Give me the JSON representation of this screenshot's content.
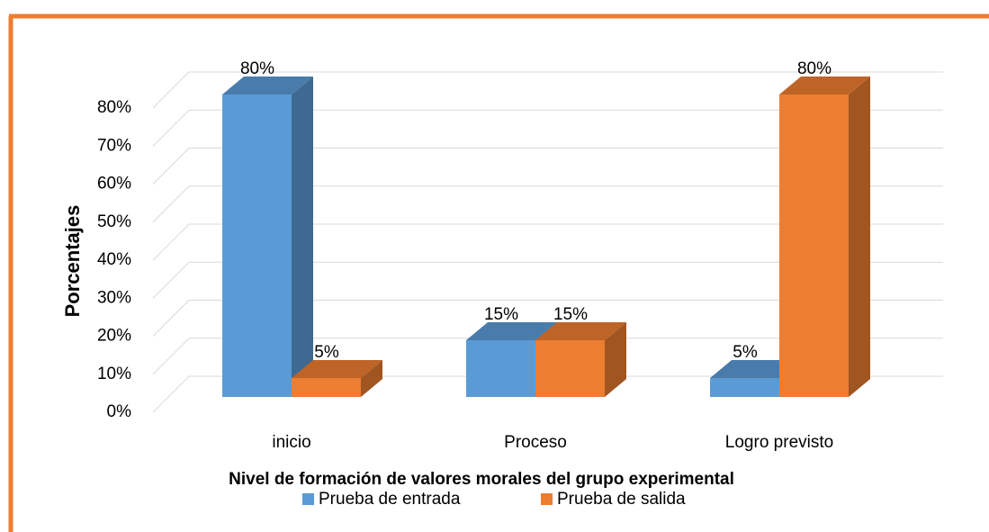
{
  "chart_data": {
    "type": "bar3d",
    "x_label": "Nivel de formación de valores  morales del grupo experimental",
    "y_label": "Porcentajes",
    "categories": [
      "inicio",
      "Proceso",
      "Logro previsto"
    ],
    "series": [
      {
        "name": "Prueba de entrada",
        "color": "#5b9bd5",
        "values": [
          80,
          15,
          5
        ],
        "value_labels": [
          "80%",
          "15%",
          "5%"
        ]
      },
      {
        "name": "Prueba de salida",
        "color": "#ed7d31",
        "values": [
          5,
          15,
          80
        ],
        "value_labels": [
          "5%",
          "15%",
          "80%"
        ]
      }
    ],
    "ylim": [
      0,
      80
    ],
    "yticks": [
      {
        "value": 0,
        "label": "0%"
      },
      {
        "value": 10,
        "label": "10%"
      },
      {
        "value": 20,
        "label": "20%"
      },
      {
        "value": 30,
        "label": "30%"
      },
      {
        "value": 40,
        "label": "40%"
      },
      {
        "value": 50,
        "label": "50%"
      },
      {
        "value": 60,
        "label": "60%"
      },
      {
        "value": 70,
        "label": "70%"
      },
      {
        "value": 80,
        "label": "80%"
      }
    ],
    "grid": true,
    "legend": "bottom"
  }
}
